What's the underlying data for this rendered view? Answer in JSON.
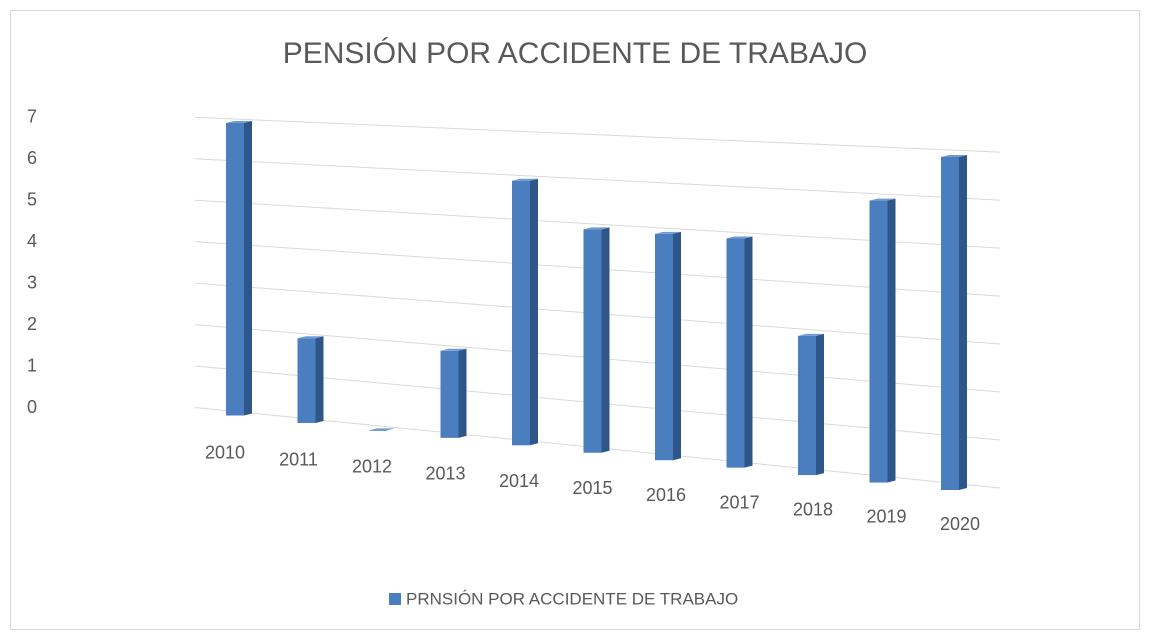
{
  "chart_data": {
    "type": "bar",
    "title": "PENSIÓN POR ACCIDENTE DE TRABAJO",
    "categories": [
      "2010",
      "2011",
      "2012",
      "2013",
      "2014",
      "2015",
      "2016",
      "2017",
      "2018",
      "2019",
      "2020"
    ],
    "series": [
      {
        "name": "PRNSIÓN POR ACCIDENTE DE TRABAJO",
        "color": "#4a7ebf",
        "values": [
          7,
          2,
          0,
          2,
          6,
          5,
          5,
          5,
          3,
          6,
          7
        ]
      }
    ],
    "ylim": [
      0,
      7
    ],
    "yticks": [
      0,
      1,
      2,
      3,
      4,
      5,
      6,
      7
    ],
    "grid": true,
    "legend": "bottom"
  }
}
